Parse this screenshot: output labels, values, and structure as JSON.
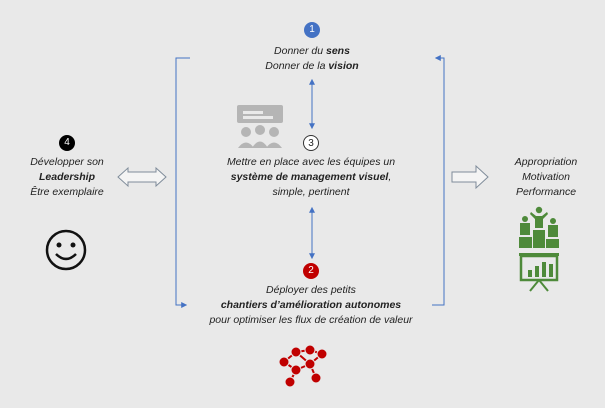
{
  "steps": {
    "sens": {
      "number": "1",
      "line1_pre": "Donner du ",
      "line1_bold": "sens",
      "line2_pre": "Donner de la ",
      "line2_bold": "vision",
      "color": "#4472c4"
    },
    "chantiers": {
      "number": "2",
      "line1": "Déployer des petits",
      "line2_bold": "chantiers d’amélioration autonomes",
      "line3": "pour optimiser les flux de création de valeur",
      "color": "#c00000"
    },
    "management": {
      "number": "3",
      "line1": "Mettre en place avec les équipes un",
      "line2_bold": "système de management visuel",
      "line2_post": ",",
      "line3": "simple, pertinent",
      "color": "#ffffff"
    },
    "leadership": {
      "number": "4",
      "line1": "Développer son",
      "line2_bold": "Leadership",
      "line3": "Être exemplaire",
      "color": "#000000"
    }
  },
  "outcomes": [
    "Appropriation",
    "Motivation",
    "Performance"
  ],
  "icons": {
    "leadership": "smiley-icon",
    "management": "team-meeting-icon",
    "chantiers": "network-people-icon",
    "outcome_podium": "podium-icon",
    "outcome_chart": "presentation-chart-icon"
  },
  "colors": {
    "accent_blue": "#4472c4",
    "accent_red": "#c00000",
    "green": "#4e8a3a",
    "icon_gray": "#b5b5b5"
  }
}
